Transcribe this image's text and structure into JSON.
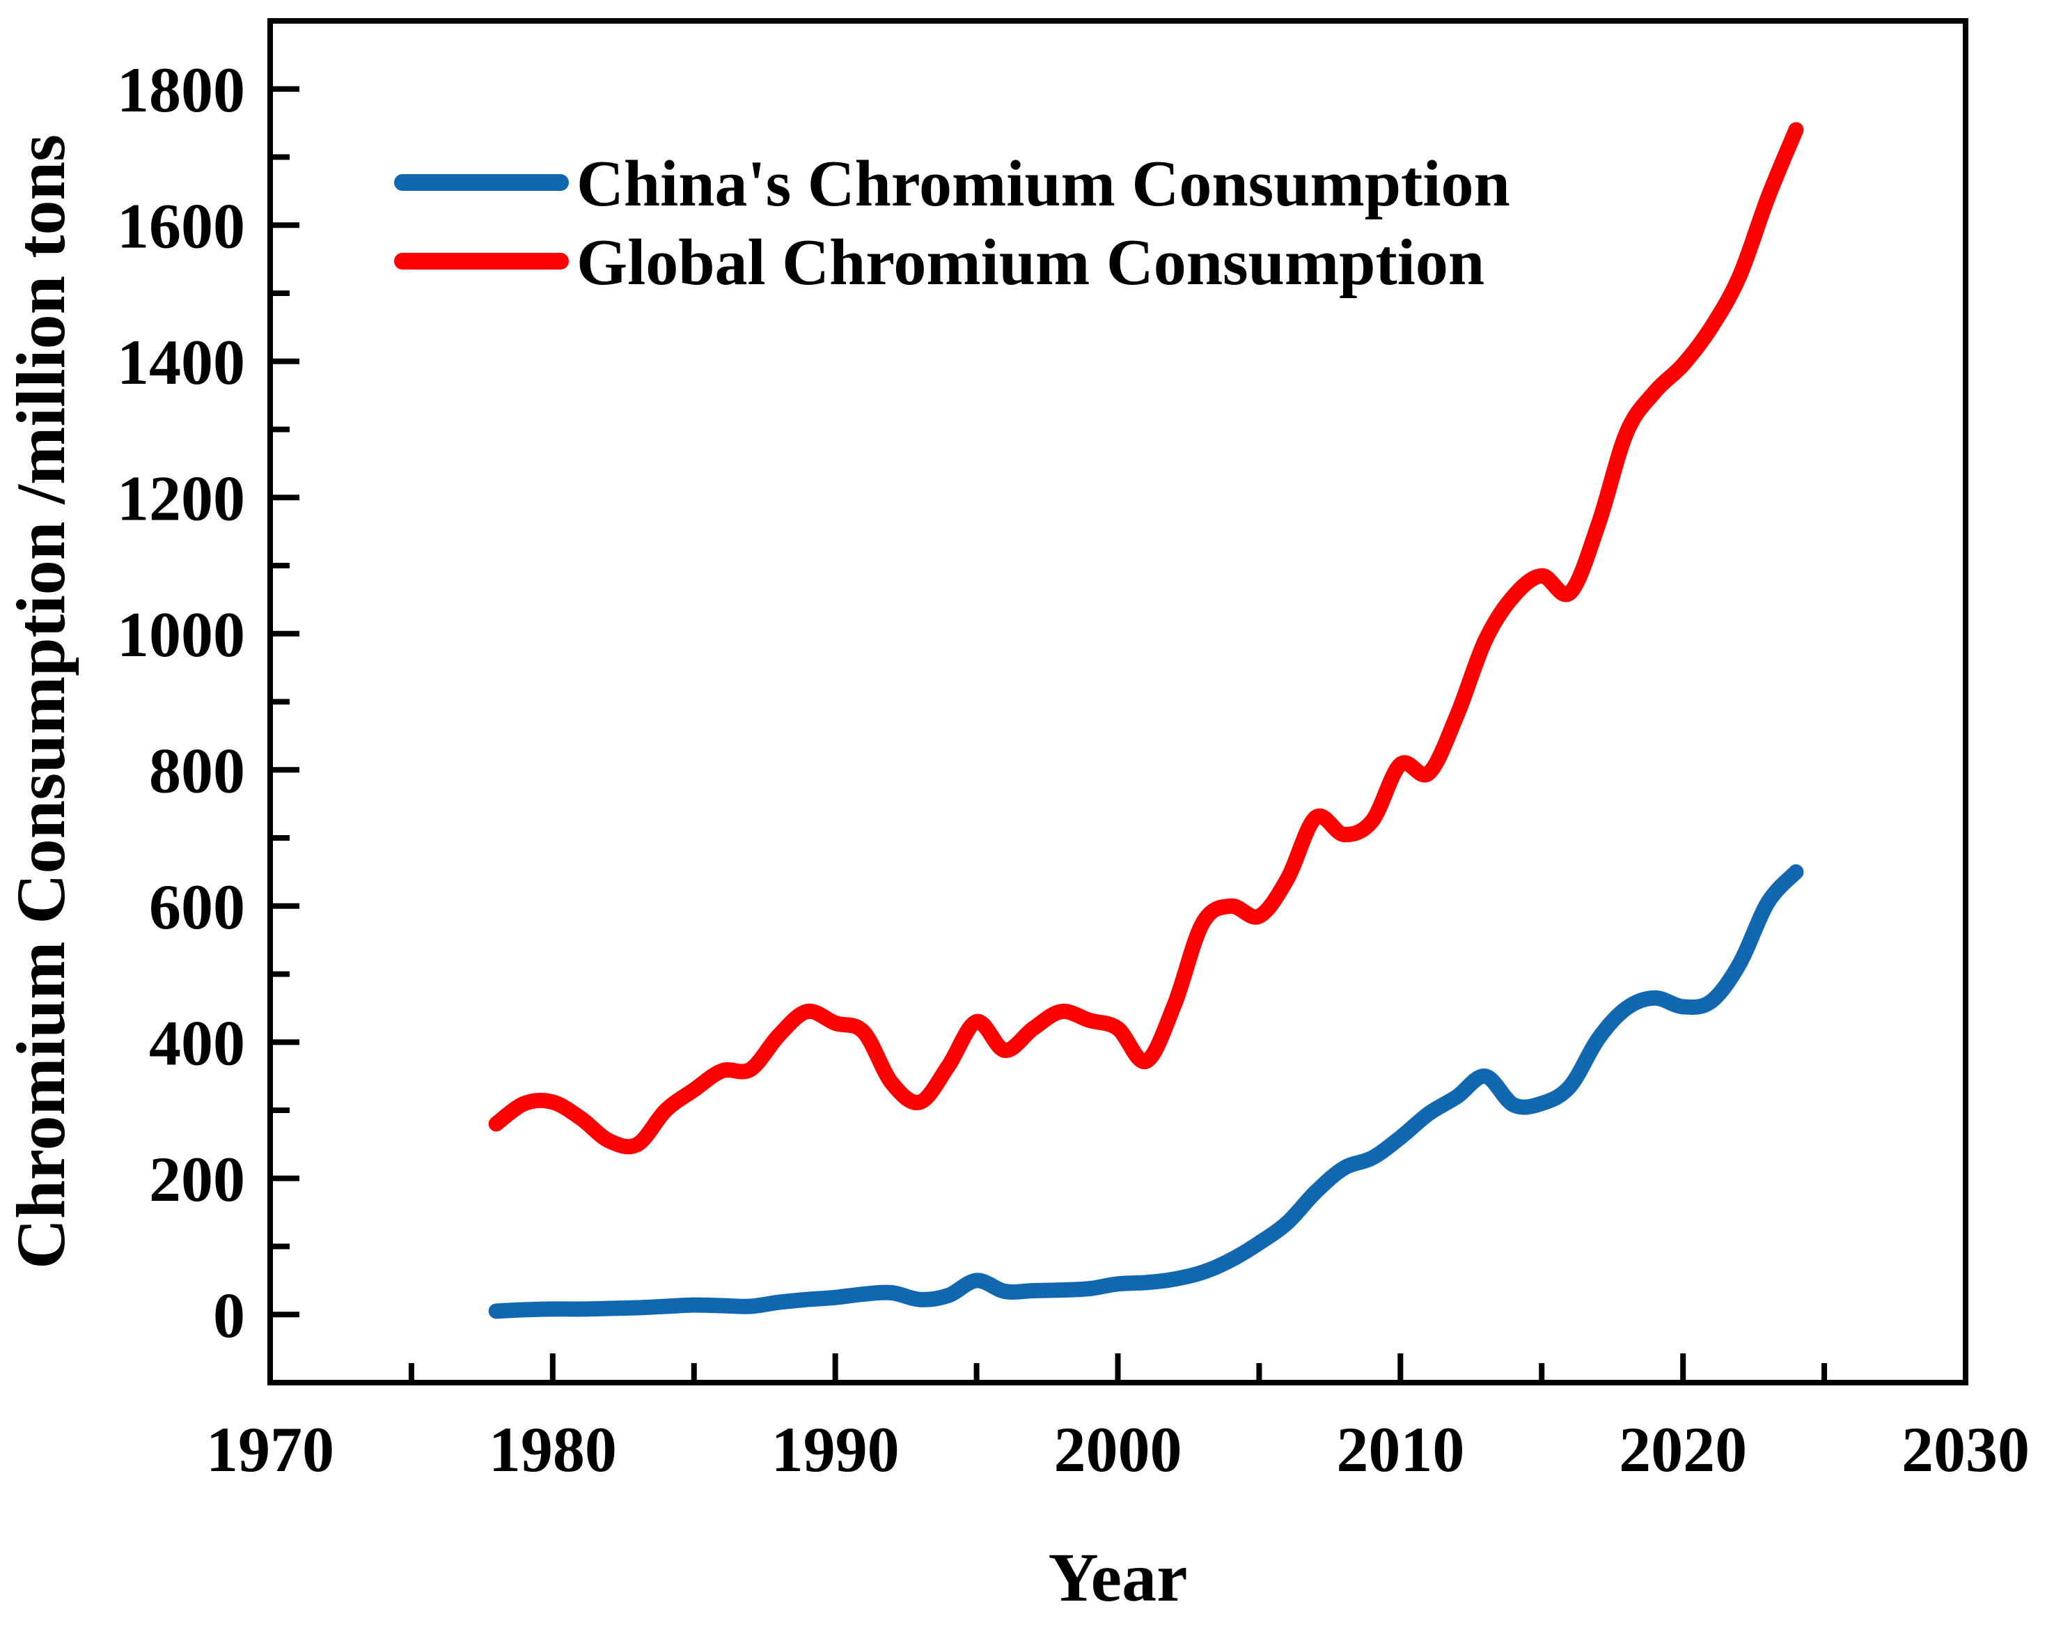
{
  "figure": {
    "background": "#ffffff",
    "text_color": "#000000"
  },
  "chart_data": {
    "type": "line",
    "title": "",
    "xlabel": "Year",
    "ylabel": "Chromium Consumption /million tons",
    "xlim": [
      1970,
      2030
    ],
    "ylim": [
      -100,
      1900
    ],
    "x_major_ticks": [
      1970,
      1980,
      1990,
      2000,
      2010,
      2020,
      2030
    ],
    "x_minor_ticks": [
      1975,
      1985,
      1995,
      2005,
      2015,
      2025
    ],
    "y_major_ticks": [
      0,
      200,
      400,
      600,
      800,
      1000,
      1200,
      1400,
      1600,
      1800
    ],
    "y_minor_ticks": [
      100,
      300,
      500,
      700,
      900,
      1100,
      1300,
      1500,
      1700
    ],
    "grid": false,
    "legend_position": "upper-left",
    "x": [
      1978,
      1979,
      1980,
      1981,
      1982,
      1983,
      1984,
      1985,
      1986,
      1987,
      1988,
      1989,
      1990,
      1991,
      1992,
      1993,
      1994,
      1995,
      1996,
      1997,
      1998,
      1999,
      2000,
      2001,
      2002,
      2003,
      2004,
      2005,
      2006,
      2007,
      2008,
      2009,
      2010,
      2011,
      2012,
      2013,
      2014,
      2015,
      2016,
      2017,
      2018,
      2019,
      2020,
      2021,
      2022,
      2023,
      2024
    ],
    "series": [
      {
        "name": "China's Chromium Consumption",
        "color": "#1168b1",
        "values": [
          5,
          7,
          8,
          8,
          9,
          10,
          12,
          14,
          13,
          12,
          18,
          22,
          25,
          30,
          32,
          22,
          28,
          50,
          34,
          35,
          36,
          38,
          45,
          47,
          52,
          62,
          80,
          105,
          135,
          180,
          215,
          230,
          260,
          295,
          320,
          350,
          308,
          310,
          335,
          405,
          450,
          465,
          452,
          460,
          515,
          605,
          650
        ]
      },
      {
        "name": "Global Chromium Consumption",
        "color": "#ff0000",
        "values": [
          280,
          310,
          312,
          288,
          255,
          250,
          300,
          330,
          358,
          360,
          410,
          445,
          428,
          415,
          340,
          312,
          365,
          430,
          388,
          420,
          445,
          432,
          420,
          372,
          455,
          575,
          600,
          585,
          640,
          730,
          705,
          725,
          808,
          795,
          880,
          990,
          1055,
          1085,
          1060,
          1160,
          1295,
          1355,
          1395,
          1450,
          1525,
          1640,
          1740
        ]
      }
    ]
  }
}
